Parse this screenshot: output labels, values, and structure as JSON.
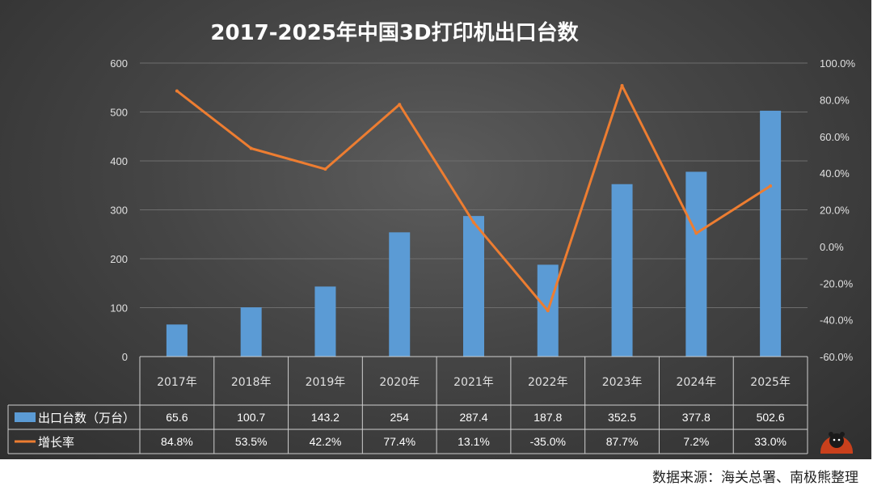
{
  "chart_data": {
    "type": "bar+line",
    "title": "2017-2025年中国3D打印机出口台数",
    "categories": [
      "2017年",
      "2018年",
      "2019年",
      "2020年",
      "2021年",
      "2022年",
      "2023年",
      "2024年",
      "2025年"
    ],
    "series": [
      {
        "name": "出口台数（万台）",
        "type": "bar",
        "axis": "left",
        "color": "#5b9bd5",
        "values": [
          65.6,
          100.7,
          143.2,
          254,
          287.4,
          187.8,
          352.5,
          377.8,
          502.6
        ],
        "labels": [
          "65.6",
          "100.7",
          "143.2",
          "254",
          "287.4",
          "187.8",
          "352.5",
          "377.8",
          "502.6"
        ]
      },
      {
        "name": "增长率",
        "type": "line",
        "axis": "right",
        "color": "#ed7d31",
        "values": [
          84.8,
          53.5,
          42.2,
          77.4,
          13.1,
          -35.0,
          87.7,
          7.2,
          33.0
        ],
        "labels": [
          "84.8%",
          "53.5%",
          "42.2%",
          "77.4%",
          "13.1%",
          "-35.0%",
          "87.7%",
          "7.2%",
          "33.0%"
        ]
      }
    ],
    "y_left": {
      "range": [
        0,
        600
      ],
      "ticks": [
        "0",
        "100",
        "200",
        "300",
        "400",
        "500",
        "600"
      ]
    },
    "y_right": {
      "range": [
        -60,
        100
      ],
      "ticks": [
        "-60.0%",
        "-40.0%",
        "-20.0%",
        "0.0%",
        "20.0%",
        "40.0%",
        "60.0%",
        "80.0%",
        "100.0%"
      ]
    },
    "grid": true,
    "data_table": true
  },
  "source": "数据来源：海关总署、南极熊整理",
  "colors": {
    "background": "#3d3d3d",
    "text": "#ffffff",
    "axis_text": "#e0e0e0"
  }
}
